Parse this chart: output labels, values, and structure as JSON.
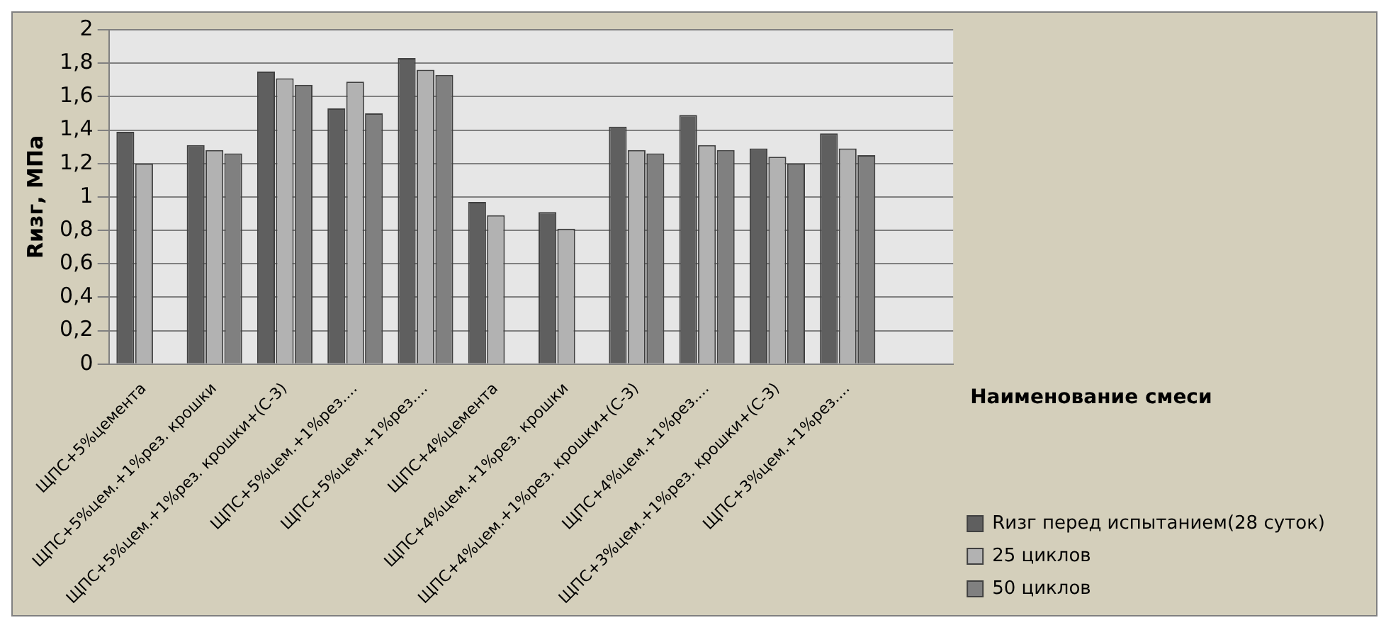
{
  "chart_data": {
    "type": "bar",
    "ylabel": "Rизг, МПа",
    "xlabel": "Наименование смеси",
    "categories": [
      "ЩПС+5%цемента",
      "ЩПС+5%цем.+1%рез. крошки",
      "ЩПС+5%цем.+1%рез. крошки+(С-3)",
      "ЩПС+5%цем.+1%рез....",
      "ЩПС+5%цем.+1%рез....",
      "ЩПС+4%цемента",
      "ЩПС+4%цем.+1%рез. крошки",
      "ЩПС+4%цем.+1%рез. крошки+(С-3)",
      "ЩПС+4%цем.+1%рез....",
      "ЩПС+3%цем.+1%рез. крошки+(С-3)",
      "ЩПС+3%цем.+1%рез....",
      null
    ],
    "series": [
      {
        "name": "Rизг перед испытанием(28 суток)",
        "color": "#5f5f5f",
        "values": [
          1.39,
          1.31,
          1.75,
          1.53,
          1.83,
          0.97,
          0.91,
          1.42,
          1.49,
          1.29,
          1.38,
          null
        ]
      },
      {
        "name": "25 циклов",
        "color": "#b2b2b2",
        "values": [
          1.2,
          1.28,
          1.71,
          1.69,
          1.76,
          0.89,
          0.81,
          1.28,
          1.31,
          1.24,
          1.29,
          null
        ]
      },
      {
        "name": "50 циклов",
        "color": "#808080",
        "values": [
          null,
          1.26,
          1.67,
          1.5,
          1.73,
          null,
          null,
          1.26,
          1.28,
          1.2,
          1.25,
          null
        ]
      }
    ],
    "ylim": [
      0,
      2
    ],
    "yticks": [
      0,
      {
        "value": 0.2,
        "label": "0,2"
      },
      {
        "value": 0.4,
        "label": "0,4"
      },
      {
        "value": 0.6,
        "label": "0,6"
      },
      {
        "value": 0.8,
        "label": "0,8"
      },
      1,
      {
        "value": 1.2,
        "label": "1,2"
      },
      {
        "value": 1.4,
        "label": "1,4"
      },
      {
        "value": 1.6,
        "label": "1,6"
      },
      {
        "value": 1.8,
        "label": "1,8"
      },
      2
    ],
    "grid": "y",
    "legend": "right"
  }
}
